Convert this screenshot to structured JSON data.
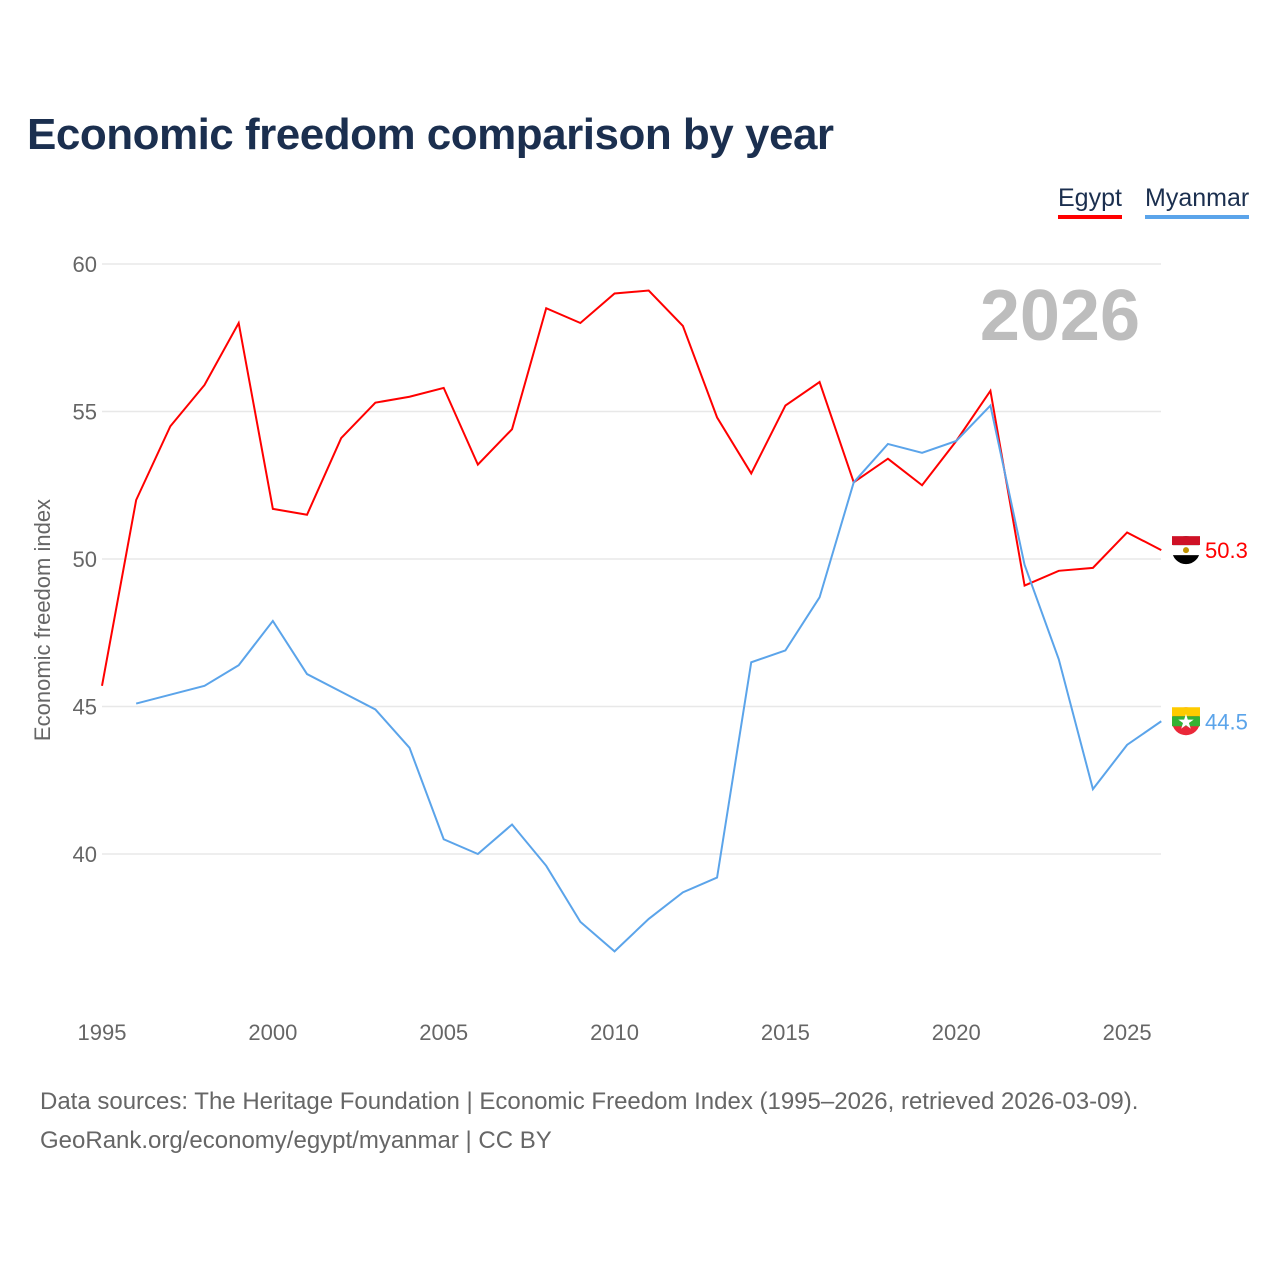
{
  "chart_data": {
    "type": "line",
    "title": "Economic freedom comparison by year",
    "xlabel": "",
    "ylabel": "Economic freedom index",
    "ylim": [
      36,
      60
    ],
    "yticks": [
      40,
      45,
      50,
      55,
      60
    ],
    "xticks": [
      1995,
      2000,
      2005,
      2010,
      2015,
      2020,
      2025
    ],
    "current_year_label": "2026",
    "legend_position": "top-right",
    "x": [
      1995,
      1996,
      1997,
      1998,
      1999,
      2000,
      2001,
      2002,
      2003,
      2004,
      2005,
      2006,
      2007,
      2008,
      2009,
      2010,
      2011,
      2012,
      2013,
      2014,
      2015,
      2016,
      2017,
      2018,
      2019,
      2020,
      2021,
      2022,
      2023,
      2024,
      2025,
      2026
    ],
    "series": [
      {
        "name": "Egypt",
        "color": "#ff0000",
        "end_label": "50.3",
        "values": [
          45.7,
          52.0,
          54.5,
          55.9,
          58.0,
          51.7,
          51.5,
          54.1,
          55.3,
          55.5,
          55.8,
          53.2,
          54.4,
          58.5,
          58.0,
          59.0,
          59.1,
          57.9,
          54.8,
          52.9,
          55.2,
          56.0,
          52.6,
          53.4,
          52.5,
          54.0,
          55.7,
          49.1,
          49.6,
          49.7,
          50.9,
          50.3
        ]
      },
      {
        "name": "Myanmar",
        "color": "#5ba4ea",
        "end_label": "44.5",
        "values": [
          null,
          45.1,
          45.4,
          45.7,
          46.4,
          47.9,
          46.1,
          45.5,
          44.9,
          43.6,
          40.5,
          40.0,
          41.0,
          39.6,
          37.7,
          36.7,
          37.8,
          38.7,
          39.2,
          46.5,
          46.9,
          48.7,
          52.6,
          53.9,
          53.6,
          54.0,
          55.2,
          49.8,
          46.6,
          42.2,
          43.7,
          44.5
        ]
      }
    ]
  },
  "footer": {
    "line1": "Data sources: The Heritage Foundation | Economic Freedom Index (1995–2026, retrieved 2026-03-09).",
    "line2": "GeoRank.org/economy/egypt/myanmar | CC BY"
  }
}
